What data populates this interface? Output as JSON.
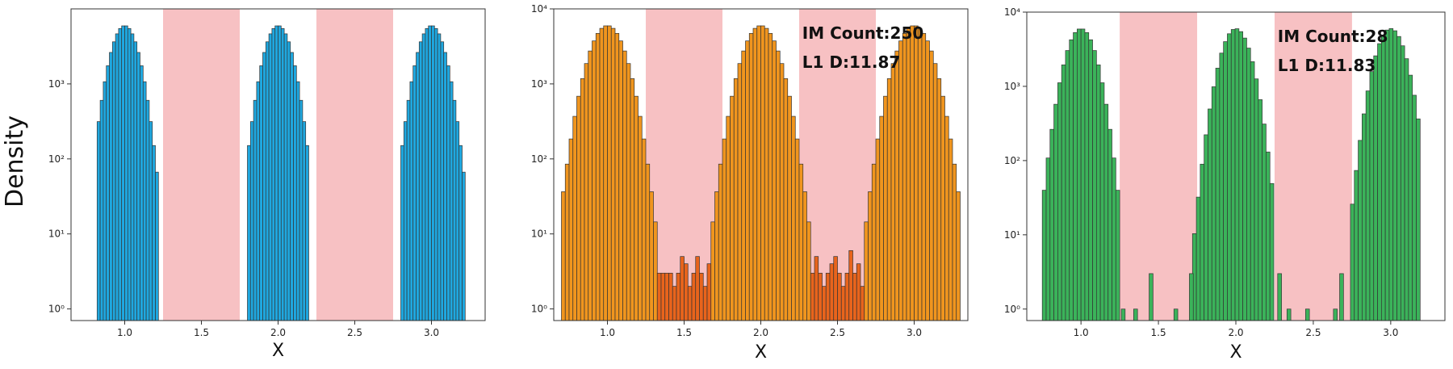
{
  "figure": {
    "ylabel": "Density"
  },
  "chart_data": [
    {
      "type": "bar",
      "color": "#1fa8e0",
      "yscale": "log",
      "ylim": [
        0.7,
        10000
      ],
      "xlim": [
        0.65,
        3.35
      ],
      "yticks": [
        1,
        10,
        100,
        1000
      ],
      "ytick_labels": [
        "10⁰",
        "10¹",
        "10²",
        "10³"
      ],
      "xticks": [
        1.0,
        1.5,
        2.0,
        2.5,
        3.0
      ],
      "xtick_labels": [
        "1.0",
        "1.5",
        "2.0",
        "2.5",
        "3.0"
      ],
      "xlabel": "X",
      "shaded_regions": [
        [
          1.25,
          1.75
        ],
        [
          2.25,
          2.75
        ]
      ],
      "shade_color": "#f7c1c3",
      "bin_width": 0.02,
      "bins": [
        0.82,
        1.22,
        1.8,
        2.2,
        2.8,
        3.22
      ],
      "peaks": [
        1.0,
        2.0,
        3.0
      ],
      "peak_height": 6000,
      "sigma": 0.07,
      "extras": [],
      "annotations": []
    },
    {
      "type": "bar",
      "color": "#f0951e",
      "gap_color": "#e8641c",
      "yscale": "log",
      "ylim": [
        0.7,
        10000
      ],
      "xlim": [
        0.65,
        3.35
      ],
      "yticks": [
        1,
        10,
        100,
        1000,
        10000
      ],
      "ytick_labels": [
        "10⁰",
        "10¹",
        "10²",
        "10³",
        "10⁴"
      ],
      "xticks": [
        1.0,
        1.5,
        2.0,
        2.5,
        3.0
      ],
      "xtick_labels": [
        "1.0",
        "1.5",
        "2.0",
        "2.5",
        "3.0"
      ],
      "xlabel": "X",
      "shaded_regions": [
        [
          1.25,
          1.75
        ],
        [
          2.25,
          2.75
        ]
      ],
      "shade_color": "#f7c1c3",
      "bin_width": 0.025,
      "bins": [
        0.7,
        3.3
      ],
      "peaks": [
        1.0,
        2.0,
        3.0
      ],
      "peak_height": 6000,
      "sigma": 0.09,
      "floor_values": [
        3,
        3,
        3,
        3,
        2,
        3,
        5,
        4,
        2,
        3,
        5,
        3,
        2,
        4,
        3,
        5,
        3,
        2,
        3,
        4,
        5,
        3,
        2,
        3,
        6,
        3,
        4,
        2,
        3,
        5,
        4,
        3,
        7,
        5,
        4,
        3,
        2,
        3,
        5,
        4
      ],
      "extras": [],
      "annotations": [
        "IM Count:250",
        "L1 D:11.87"
      ]
    },
    {
      "type": "bar",
      "color": "#3bb35a",
      "yscale": "log",
      "ylim": [
        0.7,
        10000
      ],
      "xlim": [
        0.65,
        3.35
      ],
      "yticks": [
        1,
        10,
        100,
        1000,
        10000
      ],
      "ytick_labels": [
        "10⁰",
        "10¹",
        "10²",
        "10³",
        "10⁴"
      ],
      "xticks": [
        1.0,
        1.5,
        2.0,
        2.5,
        3.0
      ],
      "xtick_labels": [
        "1.0",
        "1.5",
        "2.0",
        "2.5",
        "3.0"
      ],
      "xlabel": "X",
      "shaded_regions": [
        [
          1.25,
          1.75
        ],
        [
          2.25,
          2.75
        ]
      ],
      "shade_color": "#f7c1c3",
      "bin_width": 0.025,
      "bins": [
        0.75,
        1.24,
        1.72,
        2.24,
        2.74,
        3.18
      ],
      "peaks": [
        1.0,
        2.0,
        3.0
      ],
      "peak_height": 6000,
      "sigma": 0.075,
      "extras": [
        [
          1.26,
          1
        ],
        [
          1.34,
          1
        ],
        [
          1.44,
          3
        ],
        [
          1.6,
          1
        ],
        [
          1.7,
          3
        ],
        [
          2.27,
          3
        ],
        [
          2.33,
          1
        ],
        [
          2.45,
          1
        ],
        [
          2.63,
          1
        ],
        [
          2.67,
          3
        ]
      ],
      "annotations": [
        "IM Count:28",
        "L1 D:11.83"
      ]
    }
  ]
}
